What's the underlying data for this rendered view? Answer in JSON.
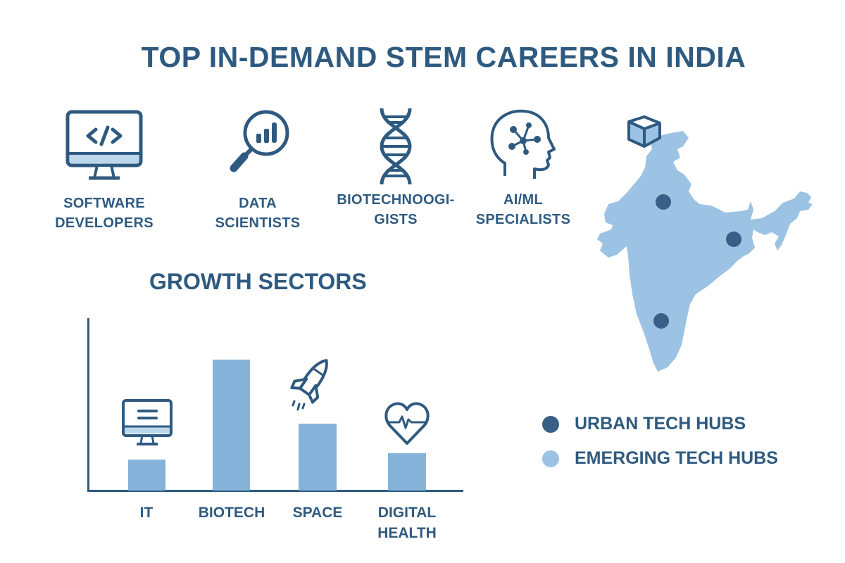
{
  "title": "TOP IN-DEMAND STEM CAREERS IN INDIA",
  "careers": [
    {
      "label_line1": "SOFTWARE",
      "label_line2": "DEVELOPERS",
      "icon": "code-monitor-icon"
    },
    {
      "label_line1": "DATA",
      "label_line2": "SCIENTISTS",
      "icon": "magnifier-chart-icon"
    },
    {
      "label_line1": "BIOTECHNOOGI-",
      "label_line2": "GISTS",
      "icon": "dna-icon"
    },
    {
      "label_line1": "AI/ML",
      "label_line2": "SPECIALISTS",
      "icon": "ai-head-icon"
    }
  ],
  "growth": {
    "title": "GROWTH SECTORS"
  },
  "chart_data": {
    "type": "bar",
    "title": "GROWTH SECTORS",
    "categories": [
      "IT",
      "BIOTECH",
      "SPACE",
      "DIGITAL HEALTH"
    ],
    "values": [
      44,
      186,
      95,
      53
    ],
    "value_units": "relative bar height (unlabeled axis)",
    "xlabel": "",
    "ylabel": "",
    "grid": false,
    "icons": [
      "monitor-icon",
      null,
      "rocket-icon",
      "heart-pulse-icon"
    ]
  },
  "map": {
    "region": "India",
    "hub_dots": [
      "north",
      "east",
      "south"
    ],
    "icon": "cube-icon"
  },
  "legend": [
    {
      "label": "URBAN TECH HUBS",
      "color": "#3a5f86"
    },
    {
      "label": "EMERGING TECH HUBS",
      "color": "#9cc3e3"
    }
  ],
  "colors": {
    "primary": "#2f5a80",
    "bar": "#85b3d9",
    "map_fill": "#9cc3e3",
    "hub_dot": "#3a5f86"
  }
}
